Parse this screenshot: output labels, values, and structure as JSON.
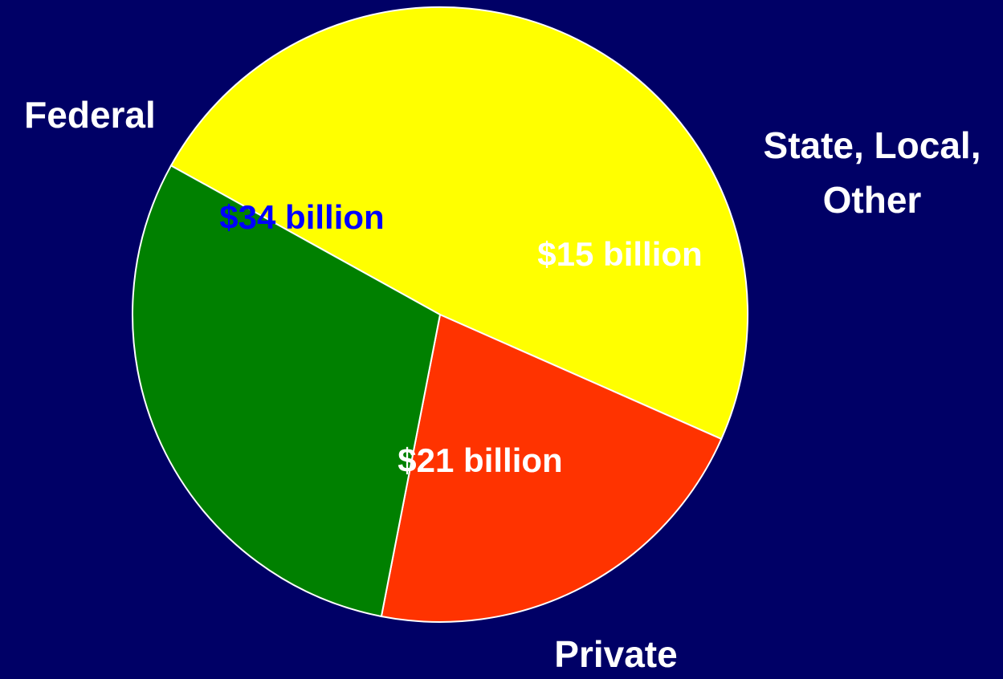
{
  "chart_data": {
    "type": "pie",
    "title": "",
    "slices": [
      {
        "category": "Federal",
        "value": 34,
        "value_label": "$34 billion",
        "color": "#FFFF00",
        "value_label_color": "#0000FF"
      },
      {
        "category": "State, Local, Other",
        "category_lines": [
          "State, Local,",
          "Other"
        ],
        "value": 15,
        "value_label": "$15 billion",
        "color": "#FF3300",
        "value_label_color": "#FFFFFF"
      },
      {
        "category": "Private",
        "value": 21,
        "value_label": "$21 billion",
        "color": "#008000",
        "value_label_color": "#FFFFFF"
      }
    ],
    "legend": "none",
    "background_color": "#000066",
    "slice_border_color": "#FFFFFF",
    "category_label_color": "#FFFFFF"
  }
}
